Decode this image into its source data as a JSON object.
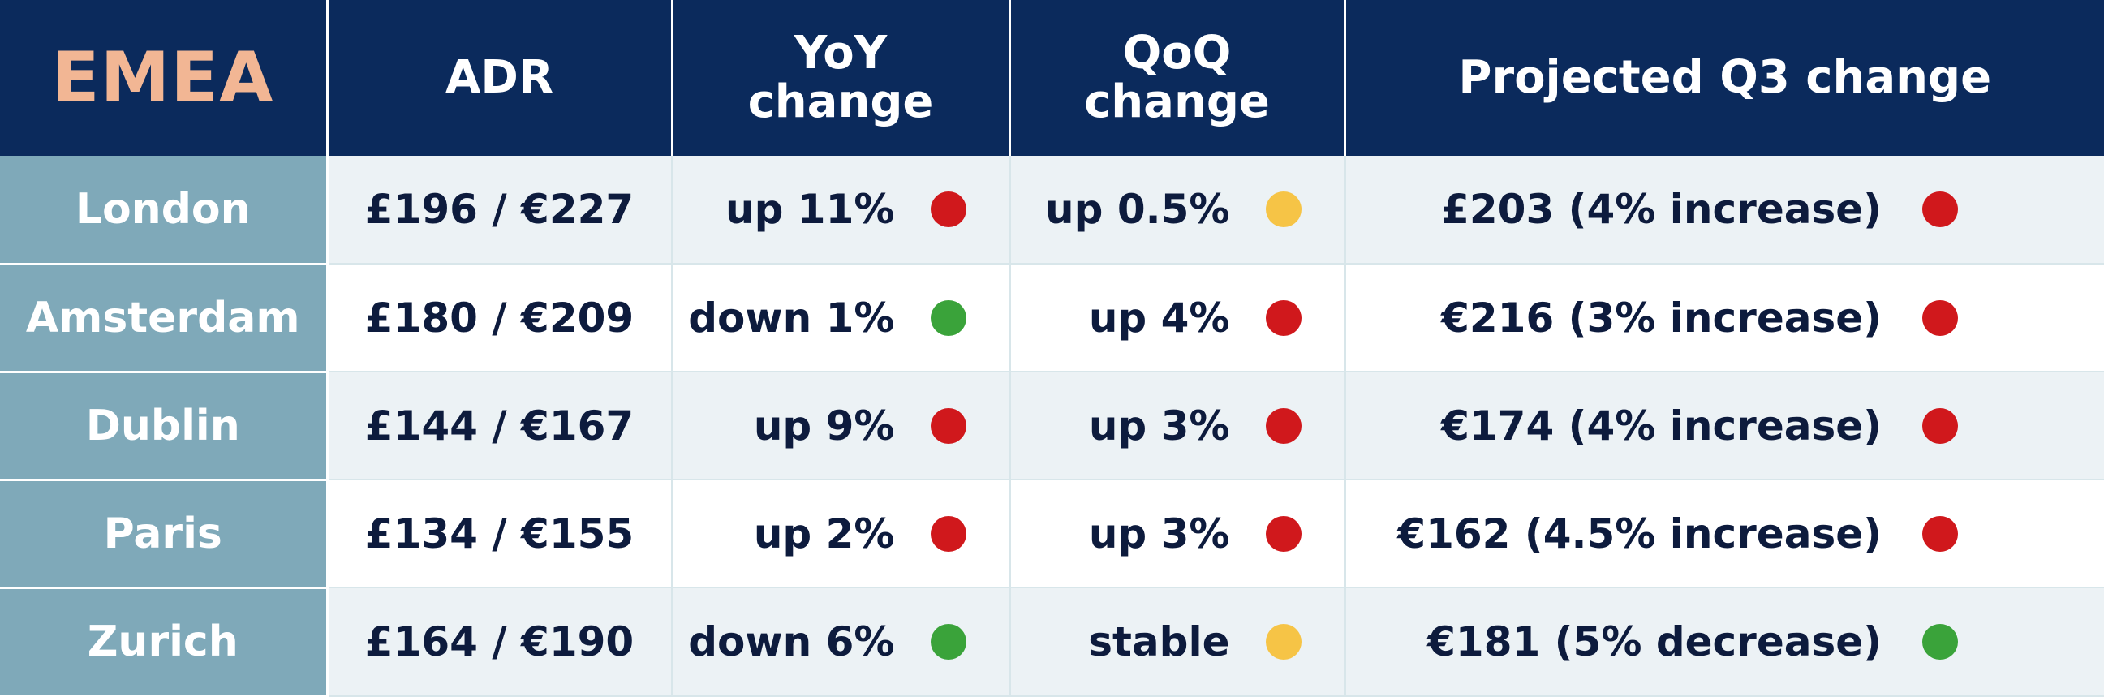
{
  "header": {
    "region": "EMEA",
    "adr": "ADR",
    "yoy_line1": "YoY",
    "yoy_line2": "change",
    "qoq_line1": "QoQ",
    "qoq_line2": "change",
    "projected": "Projected Q3 change"
  },
  "colors": {
    "red": "#d0181c",
    "green": "#3aa33a",
    "yellow": "#f6c446",
    "header_bg": "#0b2a5c",
    "region_text": "#f2b694",
    "city_bg": "#7fa9b9"
  },
  "rows": [
    {
      "city": "London",
      "adr": "£196 / €227",
      "yoy": "up 11%",
      "yoy_status": "red",
      "qoq": "up 0.5%",
      "qoq_status": "yellow",
      "projected": "£203 (4% increase)",
      "projected_status": "red"
    },
    {
      "city": "Amsterdam",
      "adr": "£180 / €209",
      "yoy": "down 1%",
      "yoy_status": "green",
      "qoq": "up 4%",
      "qoq_status": "red",
      "projected": "€216 (3% increase)",
      "projected_status": "red"
    },
    {
      "city": "Dublin",
      "adr": "£144 / €167",
      "yoy": "up 9%",
      "yoy_status": "red",
      "qoq": "up 3%",
      "qoq_status": "red",
      "projected": "€174 (4% increase)",
      "projected_status": "red"
    },
    {
      "city": "Paris",
      "adr": "£134 / €155",
      "yoy": "up 2%",
      "yoy_status": "red",
      "qoq": "up 3%",
      "qoq_status": "red",
      "projected": "€162 (4.5% increase)",
      "projected_status": "red"
    },
    {
      "city": "Zurich",
      "adr": "£164 / €190",
      "yoy": "down 6%",
      "yoy_status": "green",
      "qoq": "stable",
      "qoq_status": "yellow",
      "projected": "€181 (5% decrease)",
      "projected_status": "green"
    }
  ]
}
